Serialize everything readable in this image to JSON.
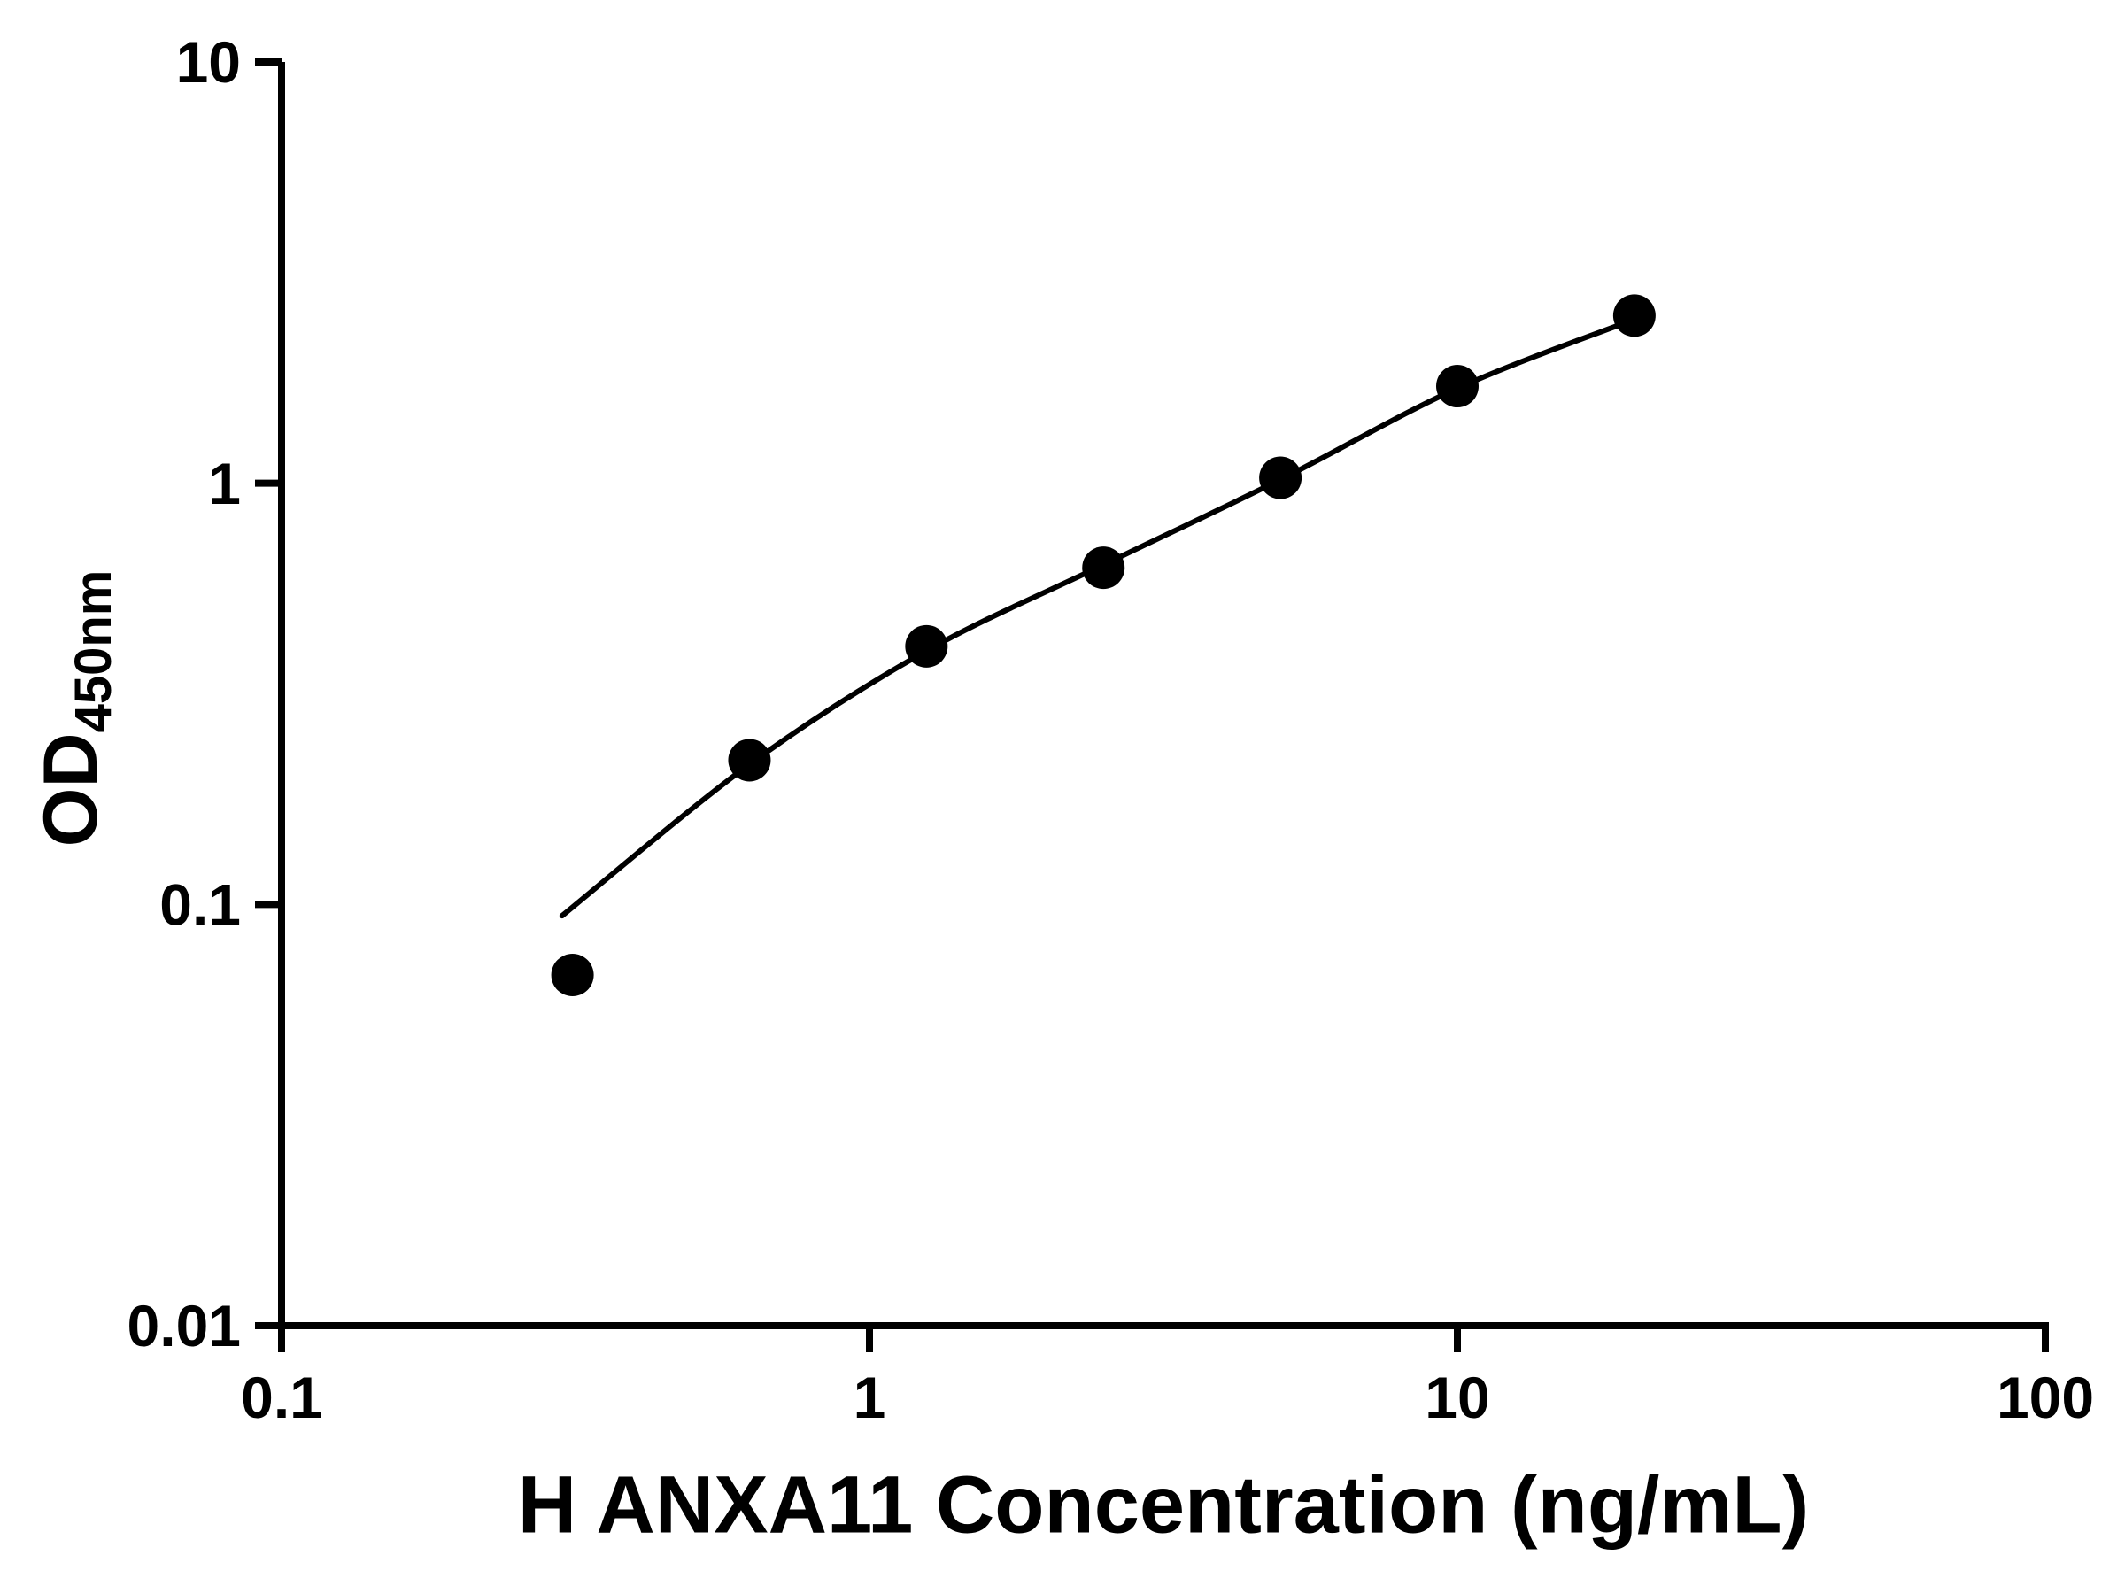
{
  "chart_data": {
    "type": "scatter",
    "title": "",
    "xlabel": "H ANXA11 Concentration (ng/mL)",
    "ylabel_main": "OD",
    "ylabel_sub": "450nm",
    "x_scale": "log",
    "y_scale": "log",
    "xlim": [
      0.1,
      100
    ],
    "ylim": [
      0.01,
      10
    ],
    "grid": false,
    "legend": null,
    "axis_color": "#000000",
    "marker_color": "#000000",
    "line_color": "#000000",
    "x_ticks": [
      {
        "value": 0.1,
        "label": "0.1"
      },
      {
        "value": 1,
        "label": "1"
      },
      {
        "value": 10,
        "label": "10"
      },
      {
        "value": 100,
        "label": "100"
      }
    ],
    "y_ticks": [
      {
        "value": 0.01,
        "label": "0.01"
      },
      {
        "value": 0.1,
        "label": "0.1"
      },
      {
        "value": 1,
        "label": "1"
      },
      {
        "value": 10,
        "label": "10"
      }
    ],
    "points": [
      {
        "x": 0.3125,
        "y": 0.068
      },
      {
        "x": 0.625,
        "y": 0.22
      },
      {
        "x": 1.25,
        "y": 0.41
      },
      {
        "x": 2.5,
        "y": 0.63
      },
      {
        "x": 5,
        "y": 1.03
      },
      {
        "x": 10,
        "y": 1.7
      },
      {
        "x": 20,
        "y": 2.5
      }
    ],
    "curve": [
      {
        "x": 0.3,
        "y": 0.094
      },
      {
        "x": 0.625,
        "y": 0.215
      },
      {
        "x": 1.25,
        "y": 0.4
      },
      {
        "x": 2.5,
        "y": 0.64
      },
      {
        "x": 5,
        "y": 1.02
      },
      {
        "x": 10,
        "y": 1.68
      },
      {
        "x": 20,
        "y": 2.45
      }
    ]
  }
}
